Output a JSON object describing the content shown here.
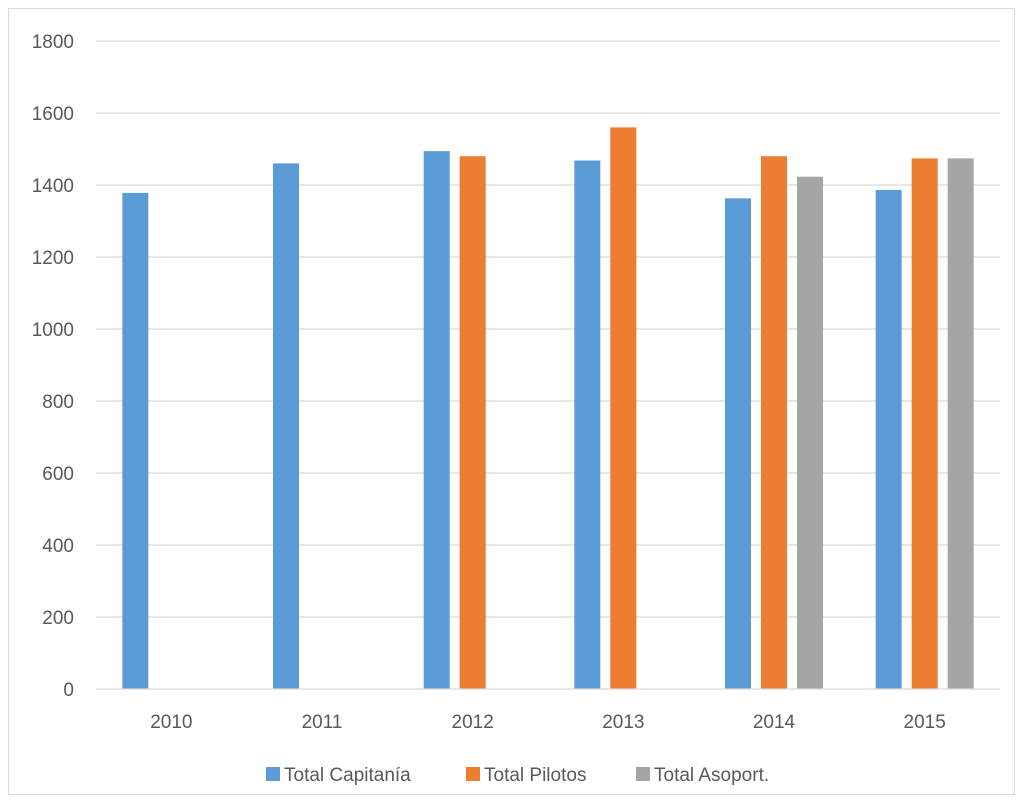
{
  "chart_data": {
    "type": "bar",
    "categories": [
      "2010",
      "2011",
      "2012",
      "2013",
      "2014",
      "2015"
    ],
    "series": [
      {
        "name": "Total Capitanía",
        "color": "#5b9bd5",
        "values": [
          1378,
          1460,
          1494,
          1468,
          1363,
          1386
        ]
      },
      {
        "name": "Total Pilotos",
        "color": "#ed7d31",
        "values": [
          null,
          null,
          1480,
          1560,
          1480,
          1474
        ]
      },
      {
        "name": "Total Asoport.",
        "color": "#a5a5a5",
        "values": [
          null,
          null,
          null,
          null,
          1423,
          1474
        ]
      }
    ],
    "ylim": [
      0,
      1800
    ],
    "yticks": [
      0,
      200,
      400,
      600,
      800,
      1000,
      1200,
      1400,
      1600,
      1800
    ],
    "grid": true,
    "legend_position": "bottom",
    "gridline_color": "#d9d9d9",
    "text_color": "#595959"
  }
}
